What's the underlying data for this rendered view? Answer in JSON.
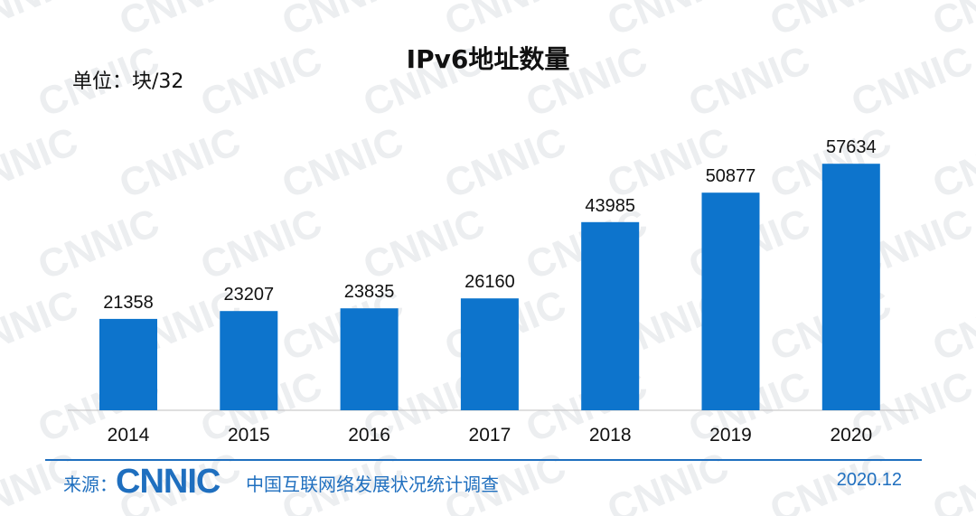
{
  "title": "IPv6地址数量",
  "unit": "单位：块/32",
  "chart_data": {
    "type": "bar",
    "categories": [
      "2014",
      "2015",
      "2016",
      "2017",
      "2018",
      "2019",
      "2020"
    ],
    "values": [
      21358,
      23207,
      23835,
      26160,
      43985,
      50877,
      57634
    ],
    "data_labels": [
      "21358",
      "23207",
      "23835",
      "26160",
      "43985",
      "50877",
      "57634"
    ],
    "ylim": [
      0,
      60000
    ],
    "grid": false,
    "legend": "none",
    "bar_color": "#0d74cc"
  },
  "footer": {
    "source_label": "来源：",
    "logo_text": "CNNIC",
    "org_name": "中国互联网络发展状况统计调查",
    "date": "2020.12"
  },
  "watermark_text": "CNNIC",
  "colors": {
    "accent": "#1f6fbf",
    "bar": "#0d74cc",
    "watermark": "#eef0f2"
  }
}
